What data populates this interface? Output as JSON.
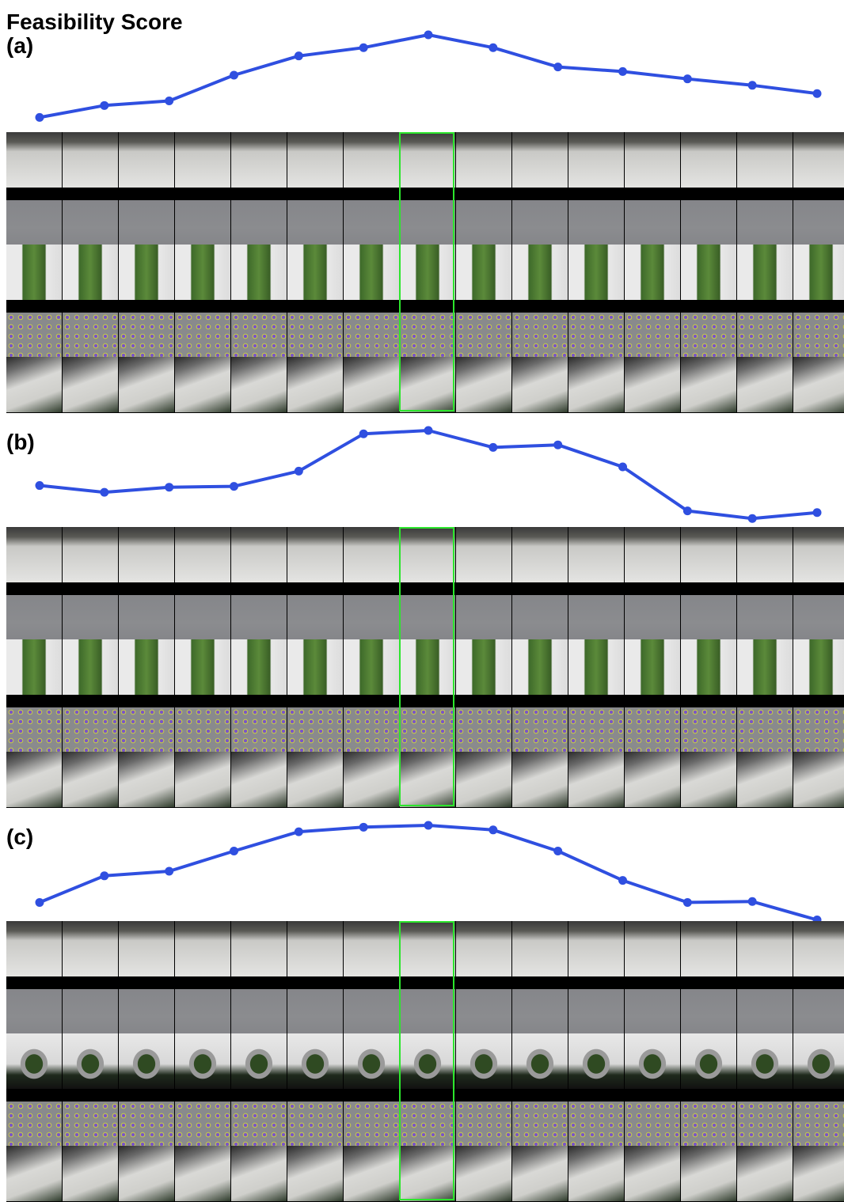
{
  "figure": {
    "title": "Feasibility Score",
    "line_color": "#2f4fe0",
    "highlight_color": "#2ce62c"
  },
  "chart_data": [
    {
      "type": "line",
      "title": "(a)",
      "x": [
        1,
        2,
        3,
        4,
        5,
        6,
        7,
        8,
        9,
        10,
        11,
        12,
        13
      ],
      "values": [
        0.1,
        0.23,
        0.28,
        0.56,
        0.77,
        0.86,
        1.0,
        0.86,
        0.65,
        0.6,
        0.52,
        0.45,
        0.36
      ],
      "ylim": [
        0,
        1
      ],
      "highlight_index": 6,
      "frame_rows": [
        "rgb",
        "depth",
        "wrist",
        "tactile",
        "side"
      ]
    },
    {
      "type": "line",
      "title": "(b)",
      "x": [
        1,
        2,
        3,
        4,
        5,
        6,
        7,
        8,
        9,
        10,
        11,
        12,
        13
      ],
      "values": [
        0.35,
        0.27,
        0.33,
        0.34,
        0.52,
        0.96,
        1.0,
        0.8,
        0.83,
        0.57,
        0.05,
        -0.04,
        0.03
      ],
      "ylim": [
        0,
        1
      ],
      "highlight_index": 6,
      "frame_rows": [
        "rgb",
        "depth",
        "wrist",
        "tactile",
        "side"
      ]
    },
    {
      "type": "line",
      "title": "(c)",
      "x": [
        1,
        2,
        3,
        4,
        5,
        6,
        7,
        8,
        9,
        10,
        11,
        12,
        13
      ],
      "values": [
        0.16,
        0.45,
        0.5,
        0.72,
        0.93,
        0.98,
        1.0,
        0.95,
        0.72,
        0.4,
        0.16,
        0.17,
        -0.03
      ],
      "ylim": [
        0,
        1
      ],
      "highlight_index": 6,
      "frame_rows": [
        "rgb",
        "depth",
        "wrist",
        "tactile",
        "side"
      ]
    }
  ]
}
